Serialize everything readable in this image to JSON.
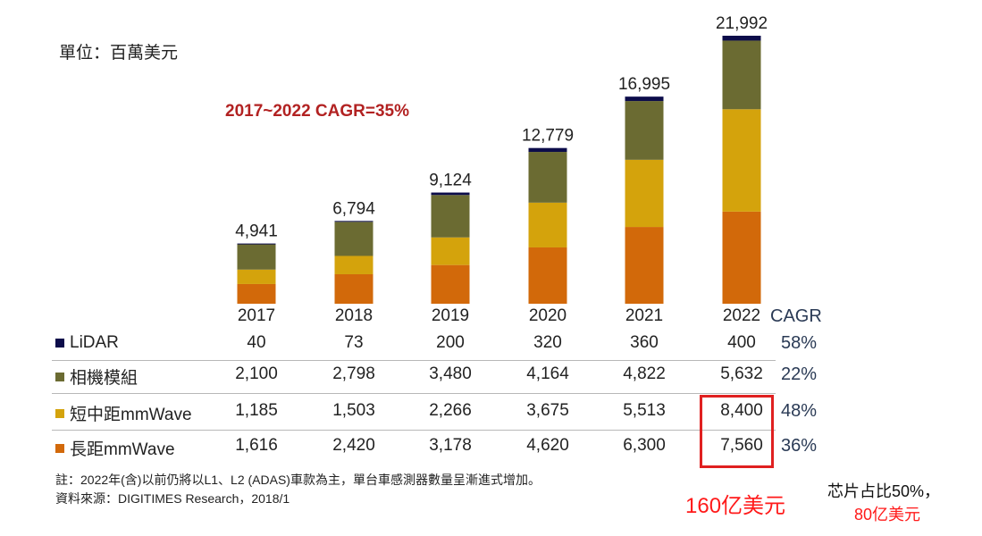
{
  "chart_data": {
    "type": "bar",
    "stacked": true,
    "unit_label": "單位：百萬美元",
    "annotation": "2017~2022  CAGR=35%",
    "categories": [
      "2017",
      "2018",
      "2019",
      "2020",
      "2021",
      "2022"
    ],
    "totals": [
      "4,941",
      "6,794",
      "9,124",
      "12,779",
      "16,995",
      "21,992"
    ],
    "series": [
      {
        "name": "長距mmWave",
        "color": "#d2690a",
        "values": [
          1616,
          2420,
          3178,
          4620,
          6300,
          7560
        ],
        "labels": [
          "1,616",
          "2,420",
          "3,178",
          "4,620",
          "6,300",
          "7,560"
        ],
        "cagr": "36%"
      },
      {
        "name": "短中距mmWave",
        "color": "#d4a30c",
        "values": [
          1185,
          1503,
          2266,
          3675,
          5513,
          8400
        ],
        "labels": [
          "1,185",
          "1,503",
          "2,266",
          "3,675",
          "5,513",
          "8,400"
        ],
        "cagr": "48%"
      },
      {
        "name": "相機模組",
        "color": "#6b6b32",
        "values": [
          2100,
          2798,
          3480,
          4164,
          4822,
          5632
        ],
        "labels": [
          "2,100",
          "2,798",
          "3,480",
          "4,164",
          "4,822",
          "5,632"
        ],
        "cagr": "22%"
      },
      {
        "name": "LiDAR",
        "color": "#0c0c4a",
        "values": [
          40,
          73,
          200,
          320,
          360,
          400
        ],
        "labels": [
          "40",
          "73",
          "200",
          "320",
          "360",
          "400"
        ],
        "cagr": "58%"
      }
    ],
    "cagr_header": "CAGR",
    "ylim": [
      0,
      22000
    ],
    "grid": false
  },
  "notes": {
    "note": "註：2022年(含)以前仍將以L1、L2 (ADAS)車款為主，單台車感測器數量呈漸進式增加。",
    "source": "資料來源：DIGITIMES Research，2018/1"
  },
  "annotations": {
    "total_highlight": "160亿美元",
    "chip_share": "芯片占比50%，",
    "chip_value": "80亿美元",
    "highlight_color": "#e02020"
  }
}
